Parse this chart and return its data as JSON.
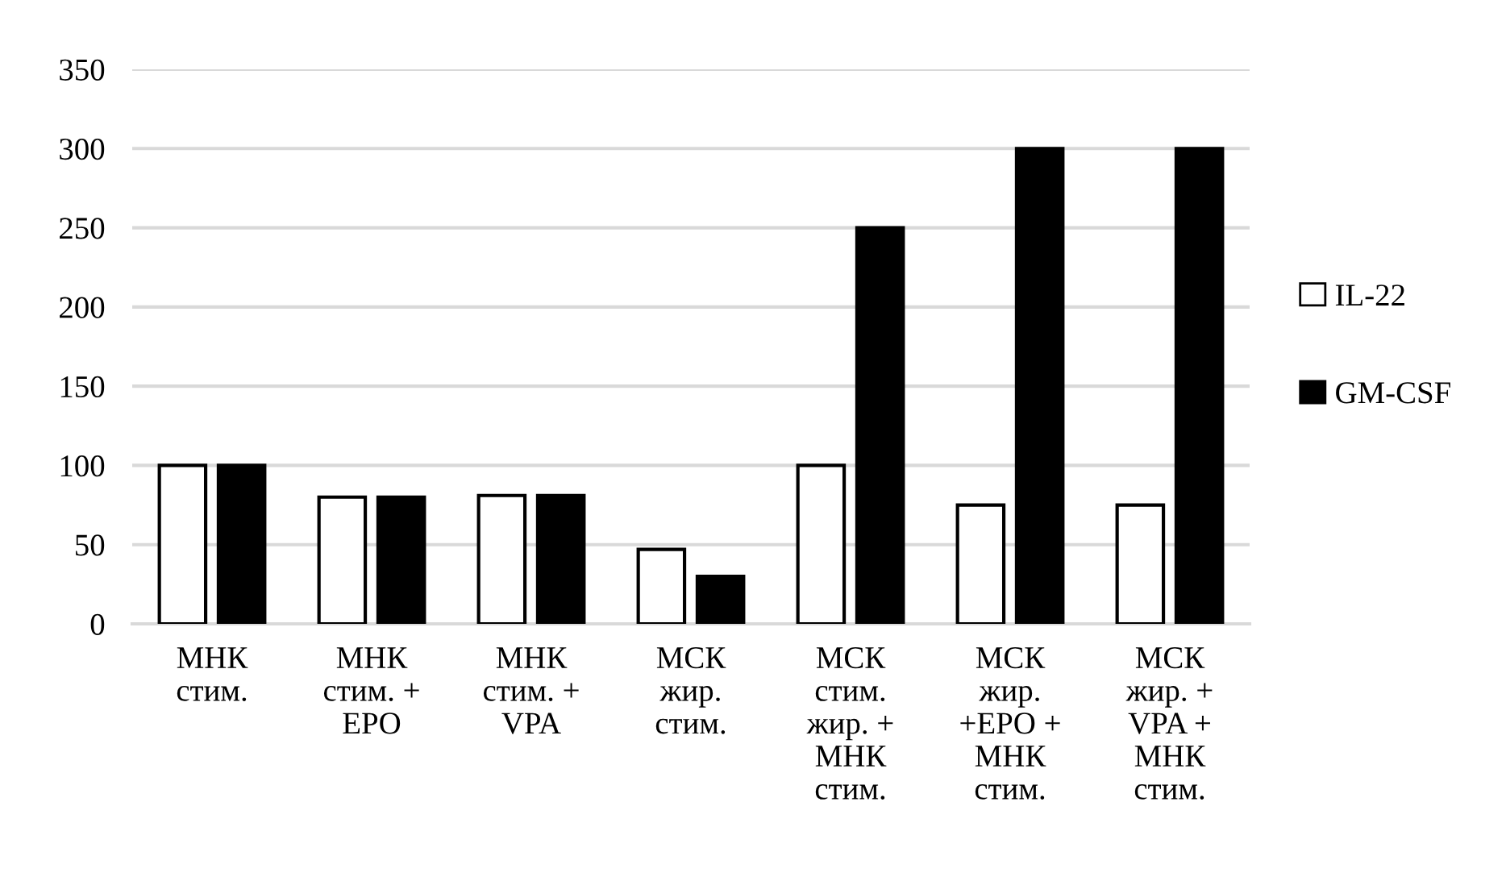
{
  "chart_data": {
    "type": "bar",
    "categories": [
      "МНК\nстим.",
      "МНК\nстим. +\nEPO",
      "МНК\nстим. +\nVPA",
      "МСК\nжир.\nстим.",
      "МСК\nстим.\nжир. +\nМНК\nстим.",
      "МСК\nжир.\n+EPO +\nМНК\nстим.",
      "МСК\nжир. +\nVPA +\nМНК\nстим."
    ],
    "series": [
      {
        "name": "IL-22",
        "color": "#ffffff",
        "values": [
          100,
          80,
          81,
          47,
          100,
          75,
          75
        ]
      },
      {
        "name": "GM-CSF",
        "color": "#000000",
        "values": [
          100,
          80,
          81,
          30,
          250,
          300,
          300
        ]
      }
    ],
    "ylim": [
      0,
      350
    ],
    "yticks": [
      0,
      50,
      100,
      150,
      200,
      250,
      300,
      350
    ],
    "grid": "y",
    "legend": "right"
  }
}
